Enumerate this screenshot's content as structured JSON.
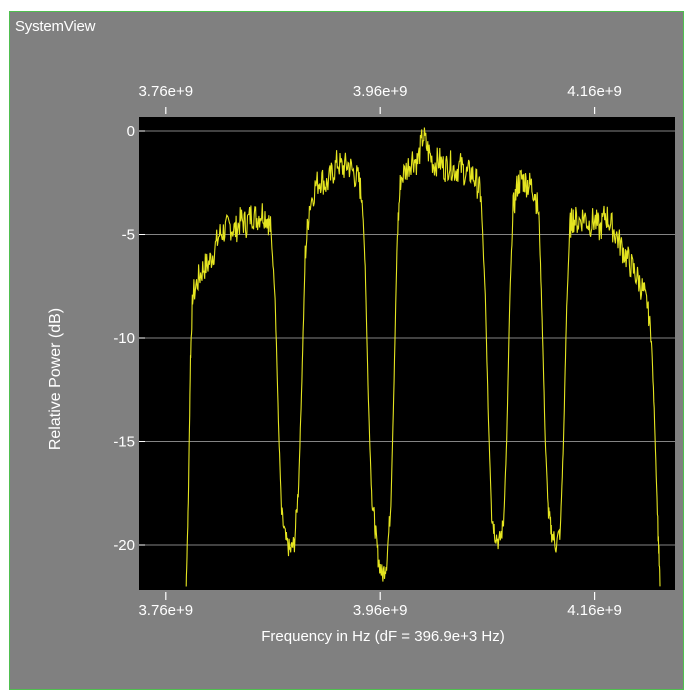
{
  "window": {
    "title": "SystemView"
  },
  "colors": {
    "window_bg": "#808080",
    "plot_bg": "#000000",
    "trace": "#e5e520",
    "grid": "#b0b0b0",
    "text": "#ffffff",
    "border": "#4fbf4f"
  },
  "chart_data": {
    "type": "line",
    "title": "",
    "xlabel": "Frequency in Hz (dF = 396.9e+3 Hz)",
    "ylabel": "Relative Power (dB)",
    "xlim": [
      3735000000.0,
      4235000000.0
    ],
    "ylim": [
      -22,
      0
    ],
    "x_ticks": [
      3760000000.0,
      3960000000.0,
      4160000000.0
    ],
    "x_tick_labels_bottom": [
      "3.76e+9",
      "3.96e+9",
      "4.16e+9"
    ],
    "x_tick_labels_top": [
      "3.76e+9",
      "3.96e+9",
      "4.16e+9"
    ],
    "y_ticks": [
      0,
      -5,
      -10,
      -15,
      -20
    ],
    "y_tick_labels": [
      "0",
      "-5",
      "-10",
      "-15",
      "-20"
    ],
    "grid": "horizontal",
    "series": [
      {
        "name": "",
        "color": "#e5e520",
        "points": [
          [
            3779000000.0,
            -22.0
          ],
          [
            3781000000.0,
            -18.0
          ],
          [
            3783000000.0,
            -11.0
          ],
          [
            3785000000.0,
            -8.0
          ],
          [
            3790000000.0,
            -7.2
          ],
          [
            3795000000.0,
            -6.6
          ],
          [
            3800000000.0,
            -6.4
          ],
          [
            3805000000.0,
            -5.8
          ],
          [
            3810000000.0,
            -5.0
          ],
          [
            3815000000.0,
            -4.8
          ],
          [
            3820000000.0,
            -4.6
          ],
          [
            3825000000.0,
            -4.8
          ],
          [
            3830000000.0,
            -4.3
          ],
          [
            3835000000.0,
            -4.5
          ],
          [
            3840000000.0,
            -4.0
          ],
          [
            3845000000.0,
            -4.2
          ],
          [
            3850000000.0,
            -3.9
          ],
          [
            3855000000.0,
            -4.2
          ],
          [
            3858000000.0,
            -4.8
          ],
          [
            3862000000.0,
            -8.0
          ],
          [
            3865000000.0,
            -14.0
          ],
          [
            3868000000.0,
            -18.5
          ],
          [
            3872000000.0,
            -19.8
          ],
          [
            3876000000.0,
            -20.3
          ],
          [
            3880000000.0,
            -19.9
          ],
          [
            3884000000.0,
            -17.0
          ],
          [
            3887000000.0,
            -12.0
          ],
          [
            3890000000.0,
            -6.0
          ],
          [
            3894000000.0,
            -3.6
          ],
          [
            3900000000.0,
            -2.6
          ],
          [
            3905000000.0,
            -2.3
          ],
          [
            3910000000.0,
            -2.6
          ],
          [
            3915000000.0,
            -2.1
          ],
          [
            3920000000.0,
            -1.5
          ],
          [
            3925000000.0,
            -1.8
          ],
          [
            3930000000.0,
            -1.6
          ],
          [
            3935000000.0,
            -2.0
          ],
          [
            3940000000.0,
            -2.4
          ],
          [
            3943000000.0,
            -3.2
          ],
          [
            3946000000.0,
            -6.5
          ],
          [
            3949000000.0,
            -13.0
          ],
          [
            3952000000.0,
            -17.5
          ],
          [
            3955000000.0,
            -19.0
          ],
          [
            3958000000.0,
            -20.6
          ],
          [
            3962000000.0,
            -21.5
          ],
          [
            3966000000.0,
            -20.8
          ],
          [
            3970000000.0,
            -18.0
          ],
          [
            3973000000.0,
            -12.0
          ],
          [
            3976000000.0,
            -5.0
          ],
          [
            3979000000.0,
            -2.3
          ],
          [
            3985000000.0,
            -1.8
          ],
          [
            3990000000.0,
            -1.3
          ],
          [
            3995000000.0,
            -1.5
          ],
          [
            4000000000.0,
            -0.2
          ],
          [
            4005000000.0,
            -1.0
          ],
          [
            4010000000.0,
            -1.6
          ],
          [
            4015000000.0,
            -1.4
          ],
          [
            4020000000.0,
            -1.8
          ],
          [
            4025000000.0,
            -1.6
          ],
          [
            4030000000.0,
            -1.9
          ],
          [
            4035000000.0,
            -1.7
          ],
          [
            4040000000.0,
            -2.1
          ],
          [
            4045000000.0,
            -2.0
          ],
          [
            4050000000.0,
            -2.5
          ],
          [
            4054000000.0,
            -3.1
          ],
          [
            4058000000.0,
            -8.0
          ],
          [
            4061000000.0,
            -14.0
          ],
          [
            4064000000.0,
            -18.5
          ],
          [
            4067000000.0,
            -19.4
          ],
          [
            4071000000.0,
            -19.9
          ],
          [
            4075000000.0,
            -19.0
          ],
          [
            4078000000.0,
            -15.0
          ],
          [
            4081000000.0,
            -8.0
          ],
          [
            4084000000.0,
            -3.8
          ],
          [
            4088000000.0,
            -2.6
          ],
          [
            4092000000.0,
            -2.3
          ],
          [
            4096000000.0,
            -2.5
          ],
          [
            4100000000.0,
            -2.6
          ],
          [
            4104000000.0,
            -2.9
          ],
          [
            4108000000.0,
            -4.0
          ],
          [
            4111000000.0,
            -9.0
          ],
          [
            4114000000.0,
            -15.0
          ],
          [
            4117000000.0,
            -18.5
          ],
          [
            4120000000.0,
            -19.4
          ],
          [
            4124000000.0,
            -20.0
          ],
          [
            4128000000.0,
            -19.3
          ],
          [
            4131000000.0,
            -15.0
          ],
          [
            4134000000.0,
            -8.5
          ],
          [
            4137000000.0,
            -4.6
          ],
          [
            4140000000.0,
            -4.2
          ],
          [
            4145000000.0,
            -4.4
          ],
          [
            4150000000.0,
            -4.1
          ],
          [
            4155000000.0,
            -4.5
          ],
          [
            4160000000.0,
            -4.3
          ],
          [
            4165000000.0,
            -4.8
          ],
          [
            4170000000.0,
            -4.0
          ],
          [
            4175000000.0,
            -4.5
          ],
          [
            4180000000.0,
            -5.0
          ],
          [
            4185000000.0,
            -5.6
          ],
          [
            4190000000.0,
            -6.1
          ],
          [
            4195000000.0,
            -6.6
          ],
          [
            4200000000.0,
            -7.1
          ],
          [
            4205000000.0,
            -7.7
          ],
          [
            4209000000.0,
            -8.3
          ],
          [
            4213000000.0,
            -10.0
          ],
          [
            4216000000.0,
            -14.0
          ],
          [
            4219000000.0,
            -19.0
          ],
          [
            4221000000.0,
            -22.0
          ]
        ]
      }
    ]
  }
}
